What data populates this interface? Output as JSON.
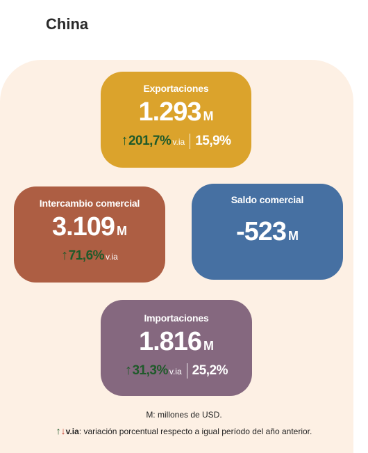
{
  "title": "China",
  "exportaciones": {
    "label": "Exportaciones",
    "value": "1.293",
    "unit": "M",
    "arrow": "↑",
    "change": "201,7%",
    "via": "v.ia",
    "share": "15,9%"
  },
  "intercambio": {
    "label": "Intercambio comercial",
    "value": "3.109",
    "unit": "M",
    "arrow": "↑",
    "change": "71,6%",
    "via": "v.ia"
  },
  "saldo": {
    "label": "Saldo comercial",
    "value": "-523",
    "unit": "M"
  },
  "importaciones": {
    "label": "Importaciones",
    "value": "1.816",
    "unit": "M",
    "arrow": "↑",
    "change": "31,3%",
    "via": "v.ia",
    "share": "25,2%"
  },
  "notes": {
    "units": "M: millones de USD.",
    "arrow_up": "↑",
    "arrow_down": "↓",
    "via_label": "v.ia",
    "via_text": ": variación porcentual respecto a igual período del año anterior."
  },
  "colors": {
    "exportaciones": "#dba32c",
    "intercambio": "#ad5e43",
    "saldo": "#4670a2",
    "importaciones": "#85687f",
    "background_panel": "#fdf0e4",
    "positive": "#1f5a2a",
    "negative": "#c0392b"
  }
}
